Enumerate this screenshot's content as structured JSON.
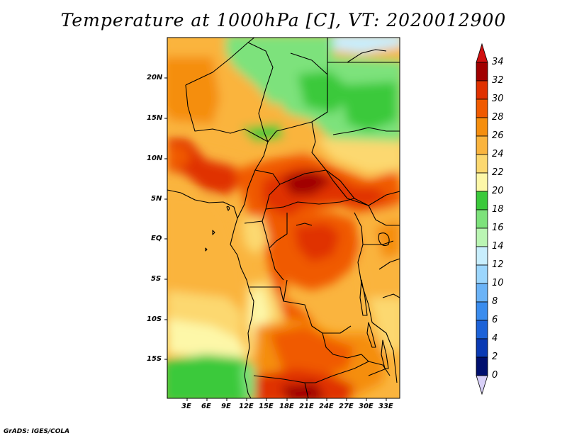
{
  "title": "Temperature at 1000hPa [C], VT: 2020012900",
  "credit": "GrADS: IGES/COLA",
  "axes": {
    "x_ticks": [
      "3E",
      "6E",
      "9E",
      "12E",
      "15E",
      "18E",
      "21E",
      "24E",
      "27E",
      "30E",
      "33E"
    ],
    "y_ticks": [
      "20N",
      "15N",
      "10N",
      "5N",
      "EQ",
      "5S",
      "10S",
      "15S"
    ]
  },
  "colorbar": {
    "labels": [
      "34",
      "32",
      "30",
      "28",
      "26",
      "24",
      "22",
      "20",
      "18",
      "16",
      "14",
      "12",
      "10",
      "8",
      "6",
      "4",
      "2",
      "0"
    ],
    "colors": [
      "#a00000",
      "#e03000",
      "#f05a00",
      "#f58e0e",
      "#fab43e",
      "#fcd870",
      "#fdf7a8",
      "#3bc93b",
      "#7de27b",
      "#baf5b3",
      "#c8eefd",
      "#9cd6fd",
      "#6bb3f7",
      "#3a8cee",
      "#1c62d8",
      "#0a3ab4",
      "#000f6e"
    ],
    "over_color": "#d01010",
    "under_color": "#d8d0f8"
  }
}
